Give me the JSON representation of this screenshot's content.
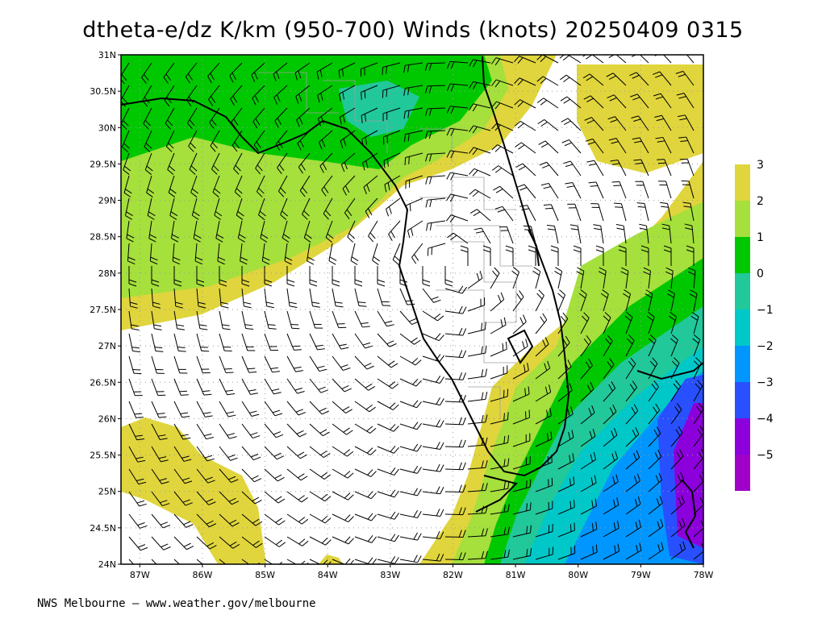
{
  "title": "dtheta-e/dz K/km (950-700) Winds (knots) 20250409 0315",
  "footer": "NWS Melbourne — www.weather.gov/melbourne",
  "map": {
    "lat_range": [
      24,
      31
    ],
    "lon_range": [
      -87.3,
      -78
    ],
    "lat_ticks": [
      {
        "value": 31,
        "label": "31N"
      },
      {
        "value": 30.5,
        "label": "30.5N"
      },
      {
        "value": 30,
        "label": "30N"
      },
      {
        "value": 29.5,
        "label": "29.5N"
      },
      {
        "value": 29,
        "label": "29N"
      },
      {
        "value": 28.5,
        "label": "28.5N"
      },
      {
        "value": 28,
        "label": "28N"
      },
      {
        "value": 27.5,
        "label": "27.5N"
      },
      {
        "value": 27,
        "label": "27N"
      },
      {
        "value": 26.5,
        "label": "26.5N"
      },
      {
        "value": 26,
        "label": "26N"
      },
      {
        "value": 25.5,
        "label": "25.5N"
      },
      {
        "value": 25,
        "label": "25N"
      },
      {
        "value": 24.5,
        "label": "24.5N"
      },
      {
        "value": 24,
        "label": "24N"
      }
    ],
    "lon_ticks": [
      {
        "value": -87,
        "label": "87W"
      },
      {
        "value": -86,
        "label": "86W"
      },
      {
        "value": -85,
        "label": "85W"
      },
      {
        "value": -84,
        "label": "84W"
      },
      {
        "value": -83,
        "label": "83W"
      },
      {
        "value": -82,
        "label": "82W"
      },
      {
        "value": -81,
        "label": "81W"
      },
      {
        "value": -80,
        "label": "80W"
      },
      {
        "value": -79,
        "label": "79W"
      },
      {
        "value": -78,
        "label": "78W"
      }
    ],
    "grid": true
  },
  "colorbar": {
    "levels": [
      "3",
      "2",
      "1",
      "0",
      "-1",
      "-2",
      "-3",
      "-4",
      "-5"
    ],
    "colors": [
      "#e0d53c",
      "#a5e03c",
      "#00c800",
      "#20c89a",
      "#00c8c8",
      "#0096ff",
      "#2850ff",
      "#8c00dc",
      "#a000c8"
    ]
  },
  "colors": {
    "coast": "#000000",
    "county_lines": "#a0a0a0",
    "grid_dots": "#9a9a9a",
    "barbs": "#000000"
  },
  "icons": {
    "wind_barb": "wind-barb-icon"
  }
}
